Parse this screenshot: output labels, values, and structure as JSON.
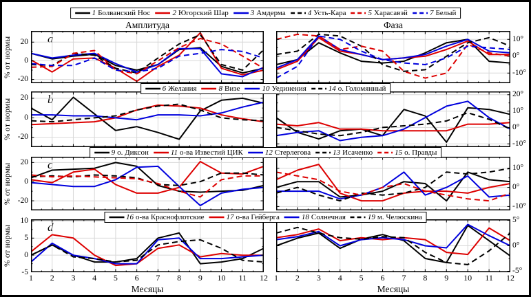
{
  "figure": {
    "column_titles": {
      "left": "Амплитуда",
      "right": "Фаза"
    },
    "xlabel": "Месяцы",
    "ylabel_left": "% от нормы",
    "x_ticks": [
      1,
      2,
      3,
      4,
      5,
      6,
      7,
      8,
      9,
      10,
      11,
      12
    ],
    "panel_labels": [
      "a",
      "b",
      "c",
      "d"
    ]
  },
  "colors": {
    "black": "#000000",
    "red": "#dd0000",
    "blue": "#0000dd",
    "grid": "#d8d8d8",
    "background": "#ffffff"
  },
  "chart_data": [
    {
      "type": "line",
      "row": "a",
      "measure": "Амплитуда",
      "ylabel": "% от нормы",
      "x": [
        1,
        2,
        3,
        4,
        5,
        6,
        7,
        8,
        9,
        10,
        11,
        12
      ],
      "ylim": [
        -24,
        32
      ],
      "yticks": [
        20,
        0,
        -20
      ],
      "ytick_suffix": "",
      "grid": true,
      "series": [
        {
          "num": "1",
          "name": "Болванский Нос",
          "color": "#000000",
          "dashed": false,
          "values": [
            8,
            2,
            5,
            7,
            -5,
            -10,
            -4,
            12,
            14,
            -6,
            -13,
            -8
          ]
        },
        {
          "num": "2",
          "name": "Югорский Шар",
          "color": "#dd0000",
          "dashed": false,
          "values": [
            1,
            -12,
            2,
            3,
            -8,
            -22,
            -6,
            6,
            30,
            -8,
            -15,
            -10
          ]
        },
        {
          "num": "3",
          "name": "Амдерма",
          "color": "#0000dd",
          "dashed": false,
          "values": [
            8,
            3,
            6,
            8,
            -3,
            -12,
            -4,
            13,
            13,
            -14,
            -17,
            -7
          ]
        },
        {
          "num": "4",
          "name": "Усть-Кара",
          "color": "#000000",
          "dashed": true,
          "values": [
            -4,
            -5,
            8,
            6,
            -8,
            -13,
            3,
            18,
            28,
            -4,
            -10,
            12
          ]
        },
        {
          "num": "5",
          "name": "Харасавэй",
          "color": "#dd0000",
          "dashed": true,
          "values": [
            -7,
            -6,
            8,
            11,
            -10,
            -14,
            0,
            14,
            24,
            18,
            5,
            -8
          ]
        },
        {
          "num": "7",
          "name": "Белый",
          "color": "#0000dd",
          "dashed": true,
          "values": [
            -3,
            -5,
            -5,
            3,
            -10,
            -12,
            -8,
            5,
            8,
            12,
            10,
            3
          ]
        }
      ]
    },
    {
      "type": "line",
      "row": "a",
      "measure": "Фаза",
      "ylabel": "",
      "x": [
        1,
        2,
        3,
        4,
        5,
        6,
        7,
        8,
        9,
        10,
        11,
        12
      ],
      "ylim": [
        -16,
        15
      ],
      "yticks": [
        10,
        0,
        -10
      ],
      "ytick_suffix": "°",
      "grid": true,
      "series": [
        {
          "num": "1",
          "name": "Болванский Нос",
          "color": "#000000",
          "dashed": false,
          "values": [
            -5,
            -2,
            8,
            2,
            -3,
            -4,
            -3,
            2,
            8,
            10,
            -3,
            -4
          ]
        },
        {
          "num": "2",
          "name": "Югорский Шар",
          "color": "#dd0000",
          "dashed": false,
          "values": [
            -8,
            -3,
            11,
            3,
            1,
            -2,
            -1,
            0,
            4,
            9,
            1,
            1
          ]
        },
        {
          "num": "3",
          "name": "Амдерма",
          "color": "#0000dd",
          "dashed": false,
          "values": [
            -7,
            -2,
            12,
            4,
            1,
            -2,
            -1,
            1,
            6,
            10,
            3,
            2
          ]
        },
        {
          "num": "4",
          "name": "Усть-Кара",
          "color": "#000000",
          "dashed": true,
          "values": [
            1,
            3,
            13,
            12,
            6,
            -5,
            -9,
            -8,
            0,
            8,
            11,
            6
          ]
        },
        {
          "num": "5",
          "name": "Харасавэй",
          "color": "#dd0000",
          "dashed": true,
          "values": [
            10,
            13,
            12,
            4,
            6,
            3,
            -9,
            -13,
            -10,
            7,
            2,
            0
          ]
        },
        {
          "num": "7",
          "name": "Белый",
          "color": "#0000dd",
          "dashed": true,
          "values": [
            -13,
            -6,
            12,
            10,
            3,
            -2,
            -4,
            -5,
            -1,
            6,
            5,
            4
          ]
        }
      ]
    },
    {
      "type": "line",
      "row": "b",
      "measure": "Амплитуда",
      "ylabel": "% от нормы",
      "x": [
        1,
        2,
        3,
        4,
        5,
        6,
        7,
        8,
        9,
        10,
        11,
        12
      ],
      "ylim": [
        -30,
        27
      ],
      "yticks": [
        20,
        0,
        -20
      ],
      "ytick_suffix": "",
      "grid": true,
      "series": [
        {
          "num": "6",
          "name": "Желания",
          "color": "#000000",
          "dashed": false,
          "values": [
            10,
            -2,
            21,
            4,
            -13,
            -9,
            -15,
            -22,
            7,
            18,
            20,
            15
          ]
        },
        {
          "num": "8",
          "name": "Визе",
          "color": "#dd0000",
          "dashed": false,
          "values": [
            -7,
            -6,
            -5,
            -4,
            0,
            8,
            13,
            12,
            10,
            3,
            -1,
            -4
          ]
        },
        {
          "num": "10",
          "name": "Уединения",
          "color": "#0000dd",
          "dashed": false,
          "values": [
            3,
            3,
            2,
            2,
            0,
            -2,
            3,
            3,
            2,
            5,
            11,
            16
          ]
        },
        {
          "num": "14",
          "name": "о. Голомянный",
          "color": "#000000",
          "dashed": true,
          "values": [
            -3,
            -4,
            -2,
            0,
            2,
            8,
            12,
            14,
            8,
            0,
            -2,
            -3
          ]
        }
      ]
    },
    {
      "type": "line",
      "row": "b",
      "measure": "Фаза",
      "ylabel": "",
      "x": [
        1,
        2,
        3,
        4,
        5,
        6,
        7,
        8,
        9,
        10,
        11,
        12
      ],
      "ylim": [
        -12,
        22
      ],
      "yticks": [
        20,
        10,
        0,
        -10
      ],
      "ytick_suffix": "°",
      "grid": true,
      "series": [
        {
          "num": "6",
          "name": "Желания",
          "color": "#000000",
          "dashed": false,
          "values": [
            6,
            -3,
            -7,
            -2,
            -1,
            -5,
            11,
            7,
            -9,
            12,
            11,
            8
          ]
        },
        {
          "num": "8",
          "name": "Визе",
          "color": "#dd0000",
          "dashed": false,
          "values": [
            2,
            1,
            3,
            -1,
            -1,
            -2,
            -2,
            -2,
            -2,
            2,
            2,
            3
          ]
        },
        {
          "num": "10",
          "name": "Уединения",
          "color": "#0000dd",
          "dashed": false,
          "values": [
            -5,
            -3,
            -2,
            -8,
            -6,
            -5,
            -1,
            6,
            13,
            16,
            6,
            -1
          ]
        },
        {
          "num": "14",
          "name": "о. Голомянный",
          "color": "#000000",
          "dashed": true,
          "values": [
            0,
            -2,
            -4,
            -5,
            -3,
            0,
            1,
            2,
            4,
            9,
            5,
            -1
          ]
        }
      ]
    },
    {
      "type": "line",
      "row": "c",
      "measure": "Амплитуда",
      "ylabel": "% от нормы",
      "x": [
        1,
        2,
        3,
        4,
        5,
        6,
        7,
        8,
        9,
        10,
        11,
        12
      ],
      "ylim": [
        -30,
        26
      ],
      "yticks": [
        20,
        0,
        -20
      ],
      "ytick_suffix": "",
      "grid": true,
      "series": [
        {
          "num": "9",
          "name": "о. Диксон",
          "color": "#000000",
          "dashed": false,
          "values": [
            4,
            12,
            13,
            14,
            20,
            16,
            -4,
            -10,
            -11,
            -10,
            -9,
            -4
          ]
        },
        {
          "num": "11",
          "name": "о-ва Известий ЦИК",
          "color": "#dd0000",
          "dashed": false,
          "values": [
            2,
            -1,
            10,
            13,
            -3,
            -12,
            -12,
            -6,
            21,
            9,
            8,
            16
          ]
        },
        {
          "num": "12",
          "name": "Стерлегова",
          "color": "#0000dd",
          "dashed": false,
          "values": [
            -1,
            -3,
            -5,
            -5,
            2,
            15,
            16,
            -5,
            -25,
            -12,
            -8,
            -6
          ]
        },
        {
          "num": "13",
          "name": "Исаченко",
          "color": "#000000",
          "dashed": true,
          "values": [
            5,
            6,
            5,
            7,
            6,
            4,
            -3,
            -4,
            0,
            9,
            9,
            7
          ]
        },
        {
          "num": "15",
          "name": "о. Правды",
          "color": "#dd0000",
          "dashed": true,
          "values": [
            7,
            5,
            6,
            5,
            4,
            3,
            -2,
            -10,
            -16,
            2,
            6,
            6
          ]
        }
      ]
    },
    {
      "type": "line",
      "row": "c",
      "measure": "Фаза",
      "ylabel": "",
      "x": [
        1,
        2,
        3,
        4,
        5,
        6,
        7,
        8,
        9,
        10,
        11,
        12
      ],
      "ylim": [
        -12,
        16
      ],
      "yticks": [
        10,
        0,
        -10
      ],
      "ytick_suffix": "°",
      "grid": true,
      "series": [
        {
          "num": "9",
          "name": "о. Диксон",
          "color": "#000000",
          "dashed": false,
          "values": [
            0,
            3,
            3,
            -5,
            -4,
            -2,
            3,
            2,
            -7,
            8,
            4,
            3
          ]
        },
        {
          "num": "11",
          "name": "о-ва Известий ЦИК",
          "color": "#dd0000",
          "dashed": false,
          "values": [
            4,
            9,
            12,
            -3,
            -7,
            -7,
            -3,
            -2,
            -2,
            -3,
            0,
            2
          ]
        },
        {
          "num": "12",
          "name": "Стерлегова",
          "color": "#0000dd",
          "dashed": false,
          "values": [
            -2,
            -2,
            -2,
            -6,
            -4,
            0,
            8,
            -4,
            0,
            6,
            -5,
            -4
          ]
        },
        {
          "num": "13",
          "name": "Исаченко",
          "color": "#000000",
          "dashed": true,
          "values": [
            -3,
            0,
            -4,
            -7,
            -3,
            -4,
            -3,
            0,
            8,
            7,
            8,
            10
          ]
        },
        {
          "num": "15",
          "name": "о. Правды",
          "color": "#dd0000",
          "dashed": true,
          "values": [
            8,
            6,
            4,
            -2,
            -4,
            0,
            2,
            -2,
            -4,
            -6,
            -7,
            -3
          ]
        }
      ]
    },
    {
      "type": "line",
      "row": "d",
      "measure": "Амплитуда",
      "ylabel": "% от нормы",
      "x": [
        1,
        2,
        3,
        4,
        5,
        6,
        7,
        8,
        9,
        10,
        11,
        12
      ],
      "ylim": [
        -5,
        10.5
      ],
      "yticks": [
        10,
        5,
        0,
        -5
      ],
      "ytick_suffix": "",
      "grid": true,
      "series": [
        {
          "num": "16",
          "name": "о-ва Краснофлотские",
          "color": "#000000",
          "dashed": false,
          "values": [
            0,
            3,
            0,
            -2,
            -2,
            -1,
            5,
            6.5,
            -2.5,
            -2,
            -1,
            2
          ]
        },
        {
          "num": "17",
          "name": "о-ва Гейберга",
          "color": "#dd0000",
          "dashed": false,
          "values": [
            1,
            6,
            5,
            0,
            -3,
            -2.5,
            2,
            3,
            -0.5,
            0.5,
            0,
            0
          ]
        },
        {
          "num": "18",
          "name": "Солнечная",
          "color": "#0000dd",
          "dashed": false,
          "values": [
            -2,
            3.5,
            0,
            -1,
            -2.5,
            -2.5,
            4.5,
            5,
            -1,
            -1,
            -0.5,
            0
          ]
        },
        {
          "num": "19",
          "name": "м. Челюскина",
          "color": "#000000",
          "dashed": true,
          "values": [
            0,
            3,
            -0.5,
            -1,
            -2,
            -1.5,
            3,
            4,
            4.5,
            2,
            -1.5,
            -2
          ]
        }
      ]
    },
    {
      "type": "line",
      "row": "d",
      "measure": "Фаза",
      "ylabel": "",
      "x": [
        1,
        2,
        3,
        4,
        5,
        6,
        7,
        8,
        9,
        10,
        11,
        12
      ],
      "ylim": [
        -5.2,
        5.2
      ],
      "yticks": [
        5,
        0,
        -5
      ],
      "ytick_suffix": "°",
      "grid": true,
      "series": [
        {
          "num": "16",
          "name": "о-ва Краснофлотские",
          "color": "#000000",
          "dashed": false,
          "values": [
            0,
            1.5,
            2.5,
            -0.5,
            1.3,
            2.2,
            1,
            -2.5,
            -3.3,
            4,
            1,
            -2
          ]
        },
        {
          "num": "17",
          "name": "о-ва Гейберга",
          "color": "#dd0000",
          "dashed": false,
          "values": [
            1.6,
            2.2,
            3.3,
            1,
            1.6,
            1.2,
            1.6,
            1.2,
            -1.3,
            -1.7,
            3.5,
            1
          ]
        },
        {
          "num": "18",
          "name": "Солнечная",
          "color": "#0000dd",
          "dashed": false,
          "values": [
            1.2,
            1.8,
            2.8,
            0,
            1.2,
            1.6,
            1.2,
            0,
            -0.4,
            4.2,
            2,
            0
          ]
        },
        {
          "num": "19",
          "name": "м. Челюскина",
          "color": "#000000",
          "dashed": true,
          "values": [
            2.5,
            3.6,
            2.5,
            1.6,
            1.3,
            1.8,
            1.6,
            -1.3,
            -3.3,
            -3.7,
            -1,
            2.5
          ]
        }
      ]
    }
  ]
}
